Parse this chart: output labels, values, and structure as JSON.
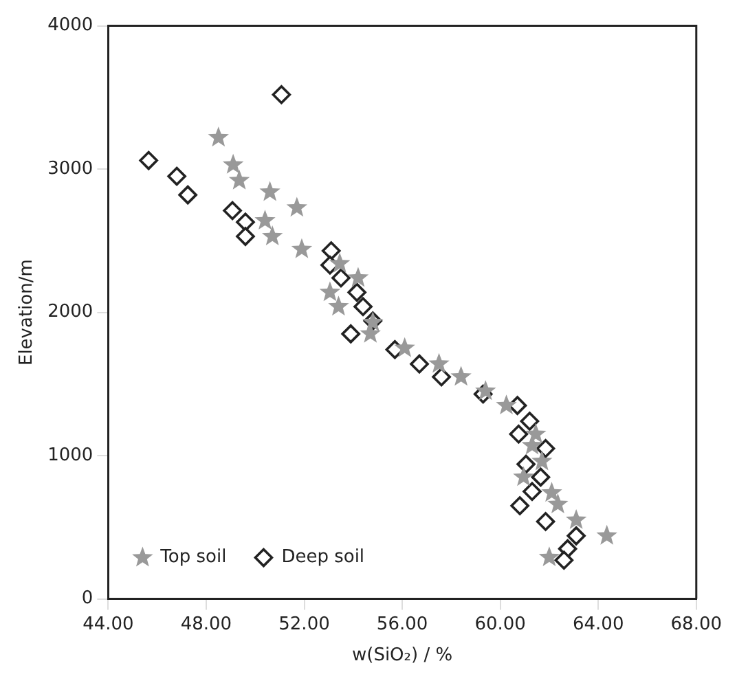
{
  "chart_data": {
    "type": "scatter",
    "xlabel": "w(SiO₂) / %",
    "ylabel": "Elevation/m",
    "xlim": [
      44,
      68
    ],
    "ylim": [
      0,
      4000
    ],
    "xticks": [
      {
        "value": 44,
        "label": "44.00"
      },
      {
        "value": 48,
        "label": "48.00"
      },
      {
        "value": 52,
        "label": "52.00"
      },
      {
        "value": 56,
        "label": "56.00"
      },
      {
        "value": 60,
        "label": "60.00"
      },
      {
        "value": 64,
        "label": "64.00"
      },
      {
        "value": 68,
        "label": "68.00"
      }
    ],
    "yticks": [
      0,
      1000,
      2000,
      3000,
      4000
    ],
    "grid": false,
    "legend": "bottom left",
    "series": [
      {
        "name": "Top soil",
        "color": "#999999",
        "marker": "star",
        "x": [
          48.5,
          49.1,
          49.35,
          50.6,
          51.7,
          50.4,
          50.7,
          51.9,
          53.45,
          54.2,
          53.05,
          53.4,
          54.8,
          54.7,
          56.1,
          57.5,
          58.4,
          59.4,
          60.25,
          61.45,
          61.3,
          61.7,
          60.95,
          62.1,
          62.35,
          63.1,
          64.35,
          62.0
        ],
        "values": [
          3220,
          3030,
          2920,
          2840,
          2730,
          2640,
          2530,
          2440,
          2340,
          2240,
          2140,
          2040,
          1930,
          1850,
          1750,
          1640,
          1550,
          1450,
          1350,
          1150,
          1070,
          960,
          850,
          740,
          660,
          550,
          440,
          290
        ]
      },
      {
        "name": "Deep soil",
        "color": "#222222",
        "marker": "diamond",
        "x": [
          51.07,
          45.65,
          46.8,
          47.25,
          49.07,
          49.6,
          49.6,
          53.1,
          53.05,
          53.5,
          54.15,
          54.4,
          54.8,
          53.9,
          55.7,
          56.7,
          57.6,
          59.3,
          60.7,
          61.2,
          60.75,
          61.85,
          61.05,
          61.65,
          61.3,
          60.8,
          61.85,
          63.1,
          62.75,
          62.6
        ],
        "values": [
          3520,
          3060,
          2950,
          2820,
          2710,
          2630,
          2530,
          2430,
          2330,
          2240,
          2140,
          2040,
          1940,
          1850,
          1740,
          1640,
          1550,
          1430,
          1350,
          1240,
          1150,
          1050,
          940,
          850,
          750,
          650,
          540,
          440,
          350,
          270
        ]
      }
    ]
  }
}
